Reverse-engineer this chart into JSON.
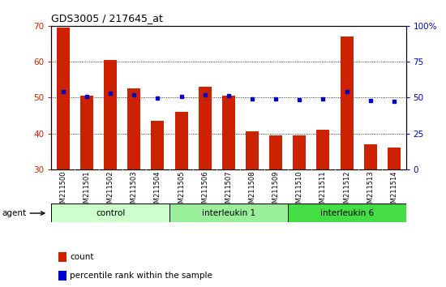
{
  "title": "GDS3005 / 217645_at",
  "samples": [
    "GSM211500",
    "GSM211501",
    "GSM211502",
    "GSM211503",
    "GSM211504",
    "GSM211505",
    "GSM211506",
    "GSM211507",
    "GSM211508",
    "GSM211509",
    "GSM211510",
    "GSM211511",
    "GSM211512",
    "GSM211513",
    "GSM211514"
  ],
  "counts": [
    69.5,
    50.5,
    60.5,
    52.5,
    43.5,
    46.0,
    53.0,
    50.5,
    40.5,
    39.5,
    39.5,
    41.0,
    67.0,
    37.0,
    36.0
  ],
  "percentiles": [
    54,
    51,
    53,
    52,
    49.5,
    51,
    52,
    51.5,
    49,
    49,
    48.5,
    49,
    54,
    48,
    47.5
  ],
  "bar_color": "#cc2200",
  "dot_color": "#0000cc",
  "ylim_left": [
    30,
    70
  ],
  "ylim_right": [
    0,
    100
  ],
  "yticks_left": [
    30,
    40,
    50,
    60,
    70
  ],
  "yticks_right": [
    0,
    25,
    50,
    75,
    100
  ],
  "groups": [
    {
      "label": "control",
      "start": 0,
      "end": 4,
      "color": "#ccffcc"
    },
    {
      "label": "interleukin 1",
      "start": 5,
      "end": 9,
      "color": "#99ee99"
    },
    {
      "label": "interleukin 6",
      "start": 10,
      "end": 14,
      "color": "#44dd44"
    }
  ],
  "legend_count_label": "count",
  "legend_pct_label": "percentile rank within the sample",
  "tick_label_color_left": "#cc2200",
  "tick_label_color_right": "#0000cc"
}
